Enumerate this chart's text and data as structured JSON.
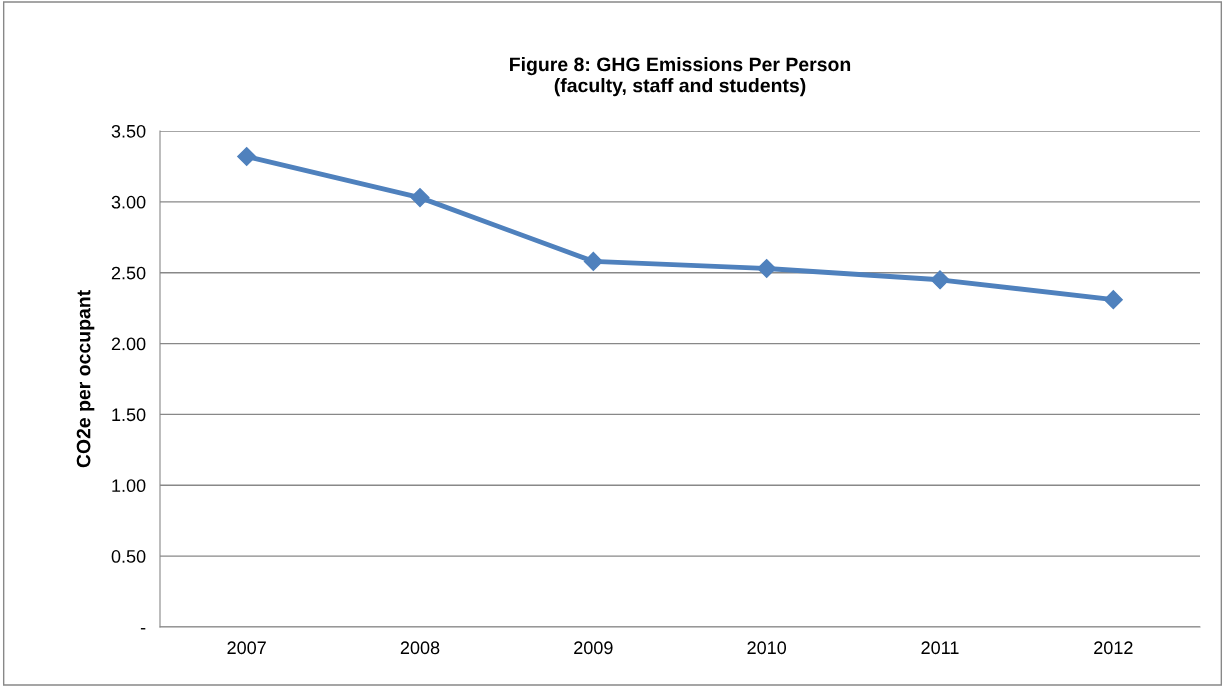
{
  "chart_data": {
    "type": "line",
    "title": "Figure 8: GHG Emissions Per Person\n(faculty, staff and students)",
    "ylabel": "CO2e per occupant",
    "categories": [
      "2007",
      "2008",
      "2009",
      "2010",
      "2011",
      "2012"
    ],
    "series": [
      {
        "color": "#4f81bd",
        "values": [
          3.32,
          3.03,
          2.58,
          2.53,
          2.45,
          2.31
        ]
      }
    ],
    "ylim": [
      0,
      3.5
    ],
    "yticks": [
      {
        "value": 0,
        "label": "-"
      },
      {
        "value": 0.5,
        "label": "0.50"
      },
      {
        "value": 1.0,
        "label": "1.00"
      },
      {
        "value": 1.5,
        "label": "1.50"
      },
      {
        "value": 2.0,
        "label": "2.00"
      },
      {
        "value": 2.5,
        "label": "2.50"
      },
      {
        "value": 3.0,
        "label": "3.00"
      },
      {
        "value": 3.5,
        "label": "3.50"
      }
    ],
    "grid": "y",
    "marker": "diamond",
    "line_style": "solid"
  }
}
